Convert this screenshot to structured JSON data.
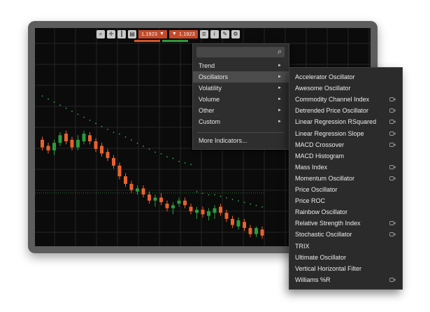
{
  "toolbar": {
    "buttons": [
      "zoom-icon",
      "crosshair-icon",
      "bar-type-icon",
      "timeframe-icon"
    ],
    "sell_price": "1.1923",
    "buy_price": "1.1923",
    "right_buttons": [
      "indicators-icon",
      "info-icon",
      "drawing-icon",
      "settings-icon"
    ],
    "arrow": "▼",
    "colors": {
      "sell": "#c44a2a",
      "buy": "#2c9a3f"
    }
  },
  "menu": {
    "search": {
      "placeholder": "",
      "value": ""
    },
    "categories": [
      {
        "label": "Trend",
        "submenu": true
      },
      {
        "label": "Oscillators",
        "submenu": true,
        "active": true
      },
      {
        "label": "Volatility",
        "submenu": true
      },
      {
        "label": "Volume",
        "submenu": true
      },
      {
        "label": "Other",
        "submenu": true
      },
      {
        "label": "Custom",
        "submenu": true
      }
    ],
    "chevron": "►",
    "more": "More Indicators..."
  },
  "submenu": {
    "items": [
      {
        "label": "Accelerator Oscillator",
        "video": false
      },
      {
        "label": "Awesome Oscillator",
        "video": false
      },
      {
        "label": "Commodity Channel Index",
        "video": true
      },
      {
        "label": "Detrended Price Oscillator",
        "video": true
      },
      {
        "label": "Linear Regression RSquared",
        "video": true
      },
      {
        "label": "Linear Regression Slope",
        "video": true
      },
      {
        "label": "MACD Crossover",
        "video": true
      },
      {
        "label": "MACD Histogram",
        "video": false
      },
      {
        "label": "Mass Index",
        "video": true
      },
      {
        "label": "Momentum Oscillator",
        "video": true
      },
      {
        "label": "Price Oscillator",
        "video": false
      },
      {
        "label": "Price ROC",
        "video": false
      },
      {
        "label": "Rainbow Oscillator",
        "video": false
      },
      {
        "label": "Relative Strength Index",
        "video": true
      },
      {
        "label": "Stochastic Oscillator",
        "video": true
      },
      {
        "label": "TRIX",
        "video": false
      },
      {
        "label": "Ultimate Oscillator",
        "video": false
      },
      {
        "label": "Vertical Horizontal Filter",
        "video": false
      },
      {
        "label": "Williams %R",
        "video": true
      }
    ]
  },
  "colors": {
    "bull": "#2b9a3d",
    "bear": "#e8622d",
    "grid": "#262626",
    "dots": "#2fa84a"
  },
  "chart_data": {
    "type": "candlestick",
    "candles": [
      [
        210,
        205,
        203,
        212
      ],
      [
        206,
        203,
        201,
        208
      ],
      [
        203,
        208,
        200,
        210
      ],
      [
        208,
        213,
        206,
        215
      ],
      [
        214,
        209,
        207,
        216
      ],
      [
        210,
        205,
        203,
        212
      ],
      [
        205,
        210,
        203,
        213
      ],
      [
        209,
        214,
        207,
        216
      ],
      [
        213,
        209,
        207,
        215
      ],
      [
        209,
        204,
        202,
        211
      ],
      [
        206,
        201,
        199,
        208
      ],
      [
        202,
        198,
        196,
        204
      ],
      [
        198,
        193,
        191,
        200
      ],
      [
        193,
        186,
        184,
        195
      ],
      [
        186,
        181,
        179,
        188
      ],
      [
        181,
        177,
        175,
        183
      ],
      [
        176,
        178,
        174,
        180
      ],
      [
        178,
        174,
        172,
        180
      ],
      [
        174,
        170,
        168,
        176
      ],
      [
        170,
        172,
        166,
        174
      ],
      [
        172,
        169,
        167,
        175
      ],
      [
        168,
        165,
        163,
        170
      ],
      [
        165,
        167,
        161,
        169
      ],
      [
        168,
        170,
        166,
        172
      ],
      [
        170,
        167,
        165,
        172
      ],
      [
        166,
        163,
        161,
        168
      ],
      [
        162,
        164,
        158,
        166
      ],
      [
        164,
        161,
        159,
        166
      ],
      [
        160,
        163,
        157,
        165
      ],
      [
        162,
        165,
        158,
        167
      ],
      [
        166,
        162,
        160,
        168
      ],
      [
        162,
        158,
        156,
        164
      ],
      [
        158,
        154,
        152,
        160
      ],
      [
        153,
        157,
        151,
        159
      ],
      [
        156,
        152,
        150,
        158
      ],
      [
        152,
        148,
        146,
        154
      ],
      [
        148,
        152,
        146,
        153
      ],
      [
        151,
        147,
        145,
        153
      ]
    ],
    "trailing_dots": [
      [
        0,
        225
      ],
      [
        1,
        223
      ],
      [
        2,
        221
      ],
      [
        3,
        219
      ],
      [
        4,
        217
      ],
      [
        5,
        215
      ],
      [
        6,
        213
      ],
      [
        7,
        211
      ],
      [
        8,
        209
      ],
      [
        9,
        207
      ],
      [
        10,
        205
      ],
      [
        11,
        203
      ],
      [
        12,
        201
      ],
      [
        13,
        200
      ],
      [
        14,
        198
      ],
      [
        15,
        196
      ],
      [
        16,
        194
      ],
      [
        17,
        192
      ],
      [
        18,
        190
      ],
      [
        19,
        188
      ],
      [
        20,
        187
      ],
      [
        21,
        185
      ],
      [
        22,
        184
      ],
      [
        23,
        182
      ],
      [
        24,
        181
      ],
      [
        25,
        180
      ],
      [
        26,
        162
      ],
      [
        27,
        161
      ],
      [
        28,
        160
      ],
      [
        29,
        160
      ],
      [
        30,
        159
      ],
      [
        31,
        158
      ],
      [
        32,
        157
      ],
      [
        33,
        156
      ],
      [
        34,
        155
      ],
      [
        35,
        154
      ],
      [
        36,
        153
      ],
      [
        37,
        152
      ]
    ],
    "reference_level": 175
  }
}
